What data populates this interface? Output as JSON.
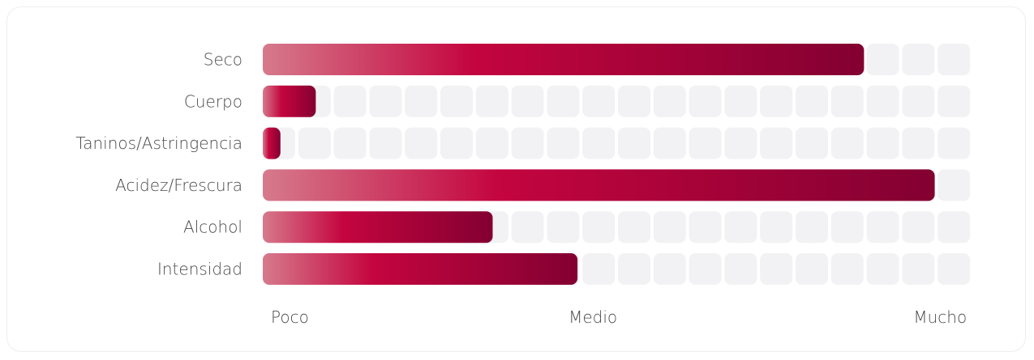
{
  "chart_data": {
    "type": "bar",
    "orientation": "horizontal",
    "categories": [
      "Seco",
      "Cuerpo",
      "Taninos/Astringencia",
      "Acidez/Frescura",
      "Alcohol",
      "Intensidad"
    ],
    "values": [
      17,
      1.5,
      0.5,
      19,
      6.5,
      8.9
    ],
    "segments": 20,
    "xlim": [
      0,
      20
    ],
    "scale_labels": [
      "Poco",
      "Medio",
      "Mucho"
    ],
    "colors": {
      "bar_start": "#d67a8c",
      "bar_mid": "#c4053f",
      "bar_end": "#830031",
      "track": "#f2f2f4"
    },
    "grid": false,
    "legend": "none"
  }
}
